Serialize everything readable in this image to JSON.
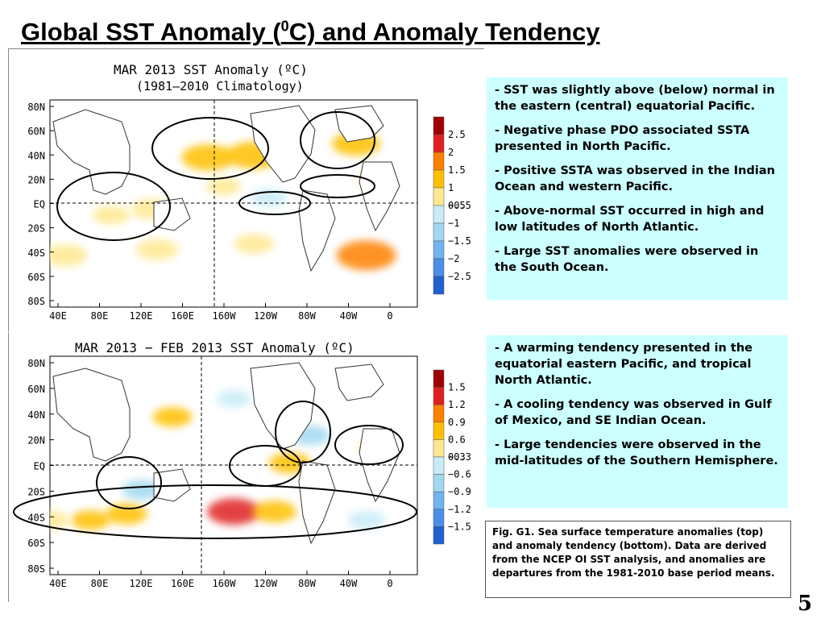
{
  "slide": {
    "title_pre": "Global SST Anomaly (",
    "title_sup": "0",
    "title_post": "C) and Anomaly Tendency",
    "page_number": "5"
  },
  "bullets_top": [
    "SST was slightly above (below) normal in the eastern (central) equatorial Pacific.",
    "Negative phase PDO associated SSTA presented in North Pacific.",
    "Positive SSTA was observed in the Indian Ocean and western Pacific.",
    "Above-normal SST occurred in high and low latitudes of North Atlantic.",
    "Large SST anomalies were observed in the South Ocean."
  ],
  "bullets_bottom": [
    "A warming tendency presented in the equatorial eastern Pacific, and tropical North Atlantic.",
    "A cooling tendency was observed in Gulf of Mexico, and SE Indian Ocean.",
    "Large tendencies were observed in the mid-latitudes of the Southern Hemisphere."
  ],
  "caption": "Fig. G1. Sea surface temperature anomalies (top) and anomaly tendency (bottom). Data are derived from the NCEP OI SST analysis, and anomalies are departures from the 1981-2010 base period means.",
  "colors": {
    "bullet_bg": "#ccffff",
    "dark_red": "#a00000",
    "red": "#e02020",
    "orange": "#ff8000",
    "light_orange": "#ffc000",
    "yellow": "#ffe890",
    "light_blue": "#c8ecf8",
    "sky": "#a0d8f0",
    "blue": "#70b4f0",
    "mid_blue": "#4a90e8",
    "deep_blue": "#2060d0"
  },
  "chart_data": [
    {
      "type": "heatmap",
      "title": "MAR 2013 SST Anomaly (",
      "title_unit": "ºC)",
      "subtitle": "(1981–2010 Climatology)",
      "x_ticks": [
        "40E",
        "80E",
        "120E",
        "160E",
        "160W",
        "120W",
        "80W",
        "40W",
        "0"
      ],
      "y_ticks": [
        "80N",
        "60N",
        "40N",
        "20N",
        "EQ",
        "20S",
        "40S",
        "60S",
        "80S"
      ],
      "colorbar": {
        "labels": [
          "2.5",
          "2",
          "1.5",
          "1",
          "0.5",
          "−0.5",
          "−1",
          "−1.5",
          "−2",
          "−2.5"
        ],
        "values": [
          2.5,
          2,
          1.5,
          1,
          0.5,
          -0.5,
          -1,
          -1.5,
          -2,
          -2.5
        ],
        "colors": [
          "#a00000",
          "#e02020",
          "#ff8000",
          "#ffc000",
          "#ffe890",
          "#c8ecf8",
          "#a0d8f0",
          "#70b4f0",
          "#4a90e8",
          "#2060d0"
        ]
      },
      "regions": [
        {
          "lon": 175,
          "lat": 40,
          "value": 1.2
        },
        {
          "lon": 220,
          "lat": 42,
          "value": 1.3
        },
        {
          "lon": 190,
          "lat": 15,
          "value": 0.4
        },
        {
          "lon": 320,
          "lat": 52,
          "value": 1.0
        },
        {
          "lon": 120,
          "lat": -5,
          "value": 0.7
        },
        {
          "lon": 80,
          "lat": -10,
          "value": 0.5
        },
        {
          "lon": 125,
          "lat": -40,
          "value": 0.7
        },
        {
          "lon": 220,
          "lat": -35,
          "value": 0.6
        },
        {
          "lon": 330,
          "lat": -45,
          "value": 1.5
        },
        {
          "lon": 35,
          "lat": -45,
          "value": 0.8
        },
        {
          "lon": 235,
          "lat": 5,
          "value": -0.5
        },
        {
          "lon": 340,
          "lat": 20,
          "value": 0.5
        }
      ]
    },
    {
      "type": "heatmap",
      "title": "MAR 2013 − FEB 2013 SST Anomaly (",
      "title_unit": "ºC)",
      "x_ticks": [
        "40E",
        "80E",
        "120E",
        "160E",
        "160W",
        "120W",
        "80W",
        "40W",
        "0"
      ],
      "y_ticks": [
        "80N",
        "60N",
        "40N",
        "20N",
        "EQ",
        "20S",
        "40S",
        "60S",
        "80S"
      ],
      "colorbar": {
        "labels": [
          "1.5",
          "1.2",
          "0.9",
          "0.6",
          "0.3",
          "−0.3",
          "−0.6",
          "−0.9",
          "−1.2",
          "−1.5"
        ],
        "values": [
          1.5,
          1.2,
          0.9,
          0.6,
          0.3,
          -0.3,
          -0.6,
          -0.9,
          -1.2,
          -1.5
        ],
        "colors": [
          "#a00000",
          "#e02020",
          "#ff8000",
          "#ffc000",
          "#ffe890",
          "#c8ecf8",
          "#a0d8f0",
          "#70b4f0",
          "#4a90e8",
          "#2060d0"
        ]
      },
      "regions": [
        {
          "lon": 200,
          "lat": -38,
          "value": 1.2
        },
        {
          "lon": 240,
          "lat": -38,
          "value": 0.8
        },
        {
          "lon": 60,
          "lat": -45,
          "value": 0.6
        },
        {
          "lon": 95,
          "lat": -40,
          "value": 0.7
        },
        {
          "lon": 255,
          "lat": 2,
          "value": 0.7
        },
        {
          "lon": 340,
          "lat": 15,
          "value": 0.5
        },
        {
          "lon": 275,
          "lat": 25,
          "value": -0.6
        },
        {
          "lon": 110,
          "lat": -20,
          "value": -0.6
        },
        {
          "lon": 140,
          "lat": 40,
          "value": 0.6
        },
        {
          "lon": 200,
          "lat": 55,
          "value": -0.4
        },
        {
          "lon": 330,
          "lat": -45,
          "value": -0.5
        },
        {
          "lon": 20,
          "lat": -45,
          "value": 0.5
        }
      ]
    }
  ]
}
